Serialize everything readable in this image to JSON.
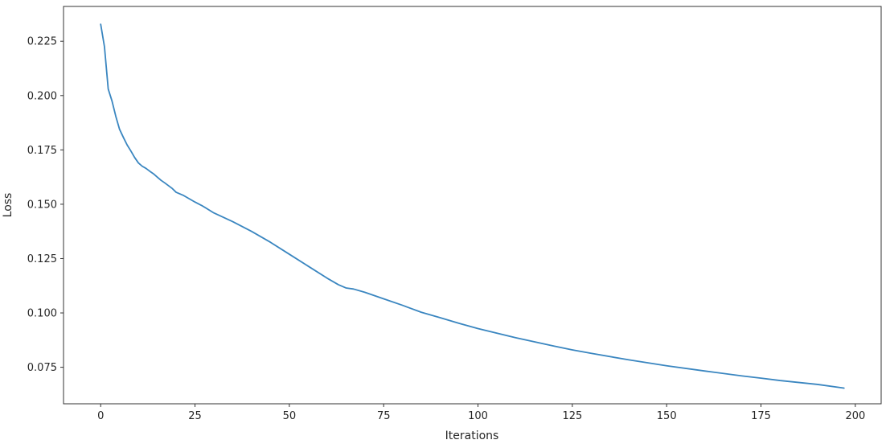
{
  "chart_data": {
    "type": "line",
    "title": "",
    "xlabel": "Iterations",
    "ylabel": "Loss",
    "xlim": [
      -9.85,
      206.85
    ],
    "ylim": [
      0.0582,
      0.241
    ],
    "grid": false,
    "legend": "none",
    "xticks": [
      0,
      25,
      50,
      75,
      100,
      125,
      150,
      175,
      200
    ],
    "xtick_labels": [
      "0",
      "25",
      "50",
      "75",
      "100",
      "125",
      "150",
      "175",
      "200"
    ],
    "yticks": [
      0.075,
      0.1,
      0.125,
      0.15,
      0.175,
      0.2,
      0.225
    ],
    "ytick_labels": [
      "0.075",
      "0.100",
      "0.125",
      "0.150",
      "0.175",
      "0.200",
      "0.225"
    ],
    "series": [
      {
        "color": "#3a86c0",
        "points": [
          [
            0,
            0.2328
          ],
          [
            1,
            0.2225
          ],
          [
            2,
            0.203
          ],
          [
            3,
            0.1975
          ],
          [
            4,
            0.1905
          ],
          [
            5,
            0.1845
          ],
          [
            6,
            0.1808
          ],
          [
            7,
            0.1773
          ],
          [
            8,
            0.1745
          ],
          [
            9,
            0.1715
          ],
          [
            10,
            0.169
          ],
          [
            11,
            0.1675
          ],
          [
            12,
            0.1665
          ],
          [
            13,
            0.1652
          ],
          [
            14,
            0.164
          ],
          [
            15,
            0.1625
          ],
          [
            16,
            0.161
          ],
          [
            17,
            0.1598
          ],
          [
            18,
            0.1585
          ],
          [
            19,
            0.1572
          ],
          [
            20,
            0.1555
          ],
          [
            22,
            0.154
          ],
          [
            25,
            0.151
          ],
          [
            27,
            0.1492
          ],
          [
            30,
            0.146
          ],
          [
            35,
            0.142
          ],
          [
            40,
            0.1375
          ],
          [
            45,
            0.1325
          ],
          [
            50,
            0.127
          ],
          [
            55,
            0.1215
          ],
          [
            60,
            0.116
          ],
          [
            63,
            0.113
          ],
          [
            65,
            0.1115
          ],
          [
            67,
            0.111
          ],
          [
            70,
            0.1095
          ],
          [
            75,
            0.1065
          ],
          [
            80,
            0.1035
          ],
          [
            85,
            0.1003
          ],
          [
            90,
            0.0978
          ],
          [
            95,
            0.0952
          ],
          [
            100,
            0.0928
          ],
          [
            110,
            0.0886
          ],
          [
            120,
            0.0848
          ],
          [
            125,
            0.083
          ],
          [
            130,
            0.0814
          ],
          [
            140,
            0.0784
          ],
          [
            150,
            0.0757
          ],
          [
            160,
            0.0733
          ],
          [
            170,
            0.071
          ],
          [
            175,
            0.07
          ],
          [
            180,
            0.0689
          ],
          [
            190,
            0.0671
          ],
          [
            197,
            0.0654
          ]
        ]
      }
    ]
  }
}
